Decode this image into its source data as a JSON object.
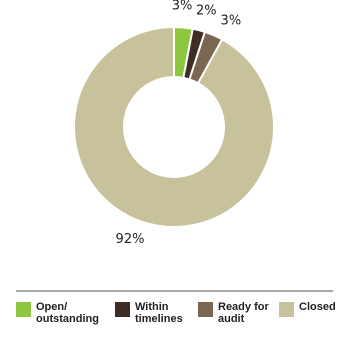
{
  "chart_data": {
    "type": "pie",
    "donut": true,
    "categories": [
      "Open/\noutstanding",
      "Within\ntimelines",
      "Ready for\naudit",
      "Closed"
    ],
    "values": [
      3,
      2,
      3,
      92
    ],
    "value_labels": [
      "3%",
      "2%",
      "3%",
      "92%"
    ],
    "colors": [
      "#8dc63f",
      "#3e2c25",
      "#7b6651",
      "#c7c29b"
    ],
    "legend_position": "bottom"
  }
}
